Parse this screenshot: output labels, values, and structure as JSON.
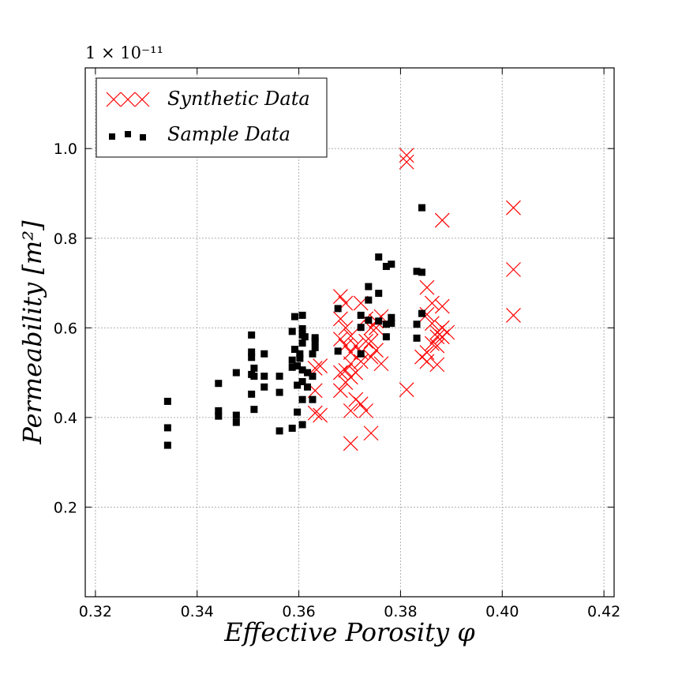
{
  "chart_data": {
    "type": "scatter",
    "xlabel": "Effective Porosity φ",
    "ylabel": "Permeability [m²]",
    "y_offset_label": "1 × 10⁻¹¹",
    "xlim": [
      0.318,
      0.422
    ],
    "ylim": [
      0.0,
      1.18
    ],
    "xticks": [
      0.32,
      0.34,
      0.36,
      0.38,
      0.4,
      0.42
    ],
    "xtick_labels": [
      "0.32",
      "0.34",
      "0.36",
      "0.38",
      "0.40",
      "0.42"
    ],
    "yticks": [
      0.2,
      0.4,
      0.6,
      0.8,
      1.0
    ],
    "ytick_labels": [
      "0.2",
      "0.4",
      "0.6",
      "0.8",
      "1.0"
    ],
    "grid": true,
    "legend_position": "top-left",
    "series": [
      {
        "name": "Synthetic Data",
        "marker": "x",
        "color": "#ff0000",
        "points": [
          [
            0.3812,
            0.985
          ],
          [
            0.3812,
            0.97
          ],
          [
            0.4022,
            0.868
          ],
          [
            0.3882,
            0.84
          ],
          [
            0.4022,
            0.73
          ],
          [
            0.4022,
            0.628
          ],
          [
            0.3812,
            0.462
          ],
          [
            0.3852,
            0.69
          ],
          [
            0.3862,
            0.655
          ],
          [
            0.3852,
            0.63
          ],
          [
            0.3882,
            0.648
          ],
          [
            0.3862,
            0.61
          ],
          [
            0.3872,
            0.58
          ],
          [
            0.3882,
            0.6
          ],
          [
            0.3872,
            0.59
          ],
          [
            0.3862,
            0.565
          ],
          [
            0.3852,
            0.545
          ],
          [
            0.3842,
            0.535
          ],
          [
            0.3882,
            0.58
          ],
          [
            0.3872,
            0.56
          ],
          [
            0.3892,
            0.59
          ],
          [
            0.3852,
            0.525
          ],
          [
            0.3872,
            0.518
          ],
          [
            0.3682,
            0.67
          ],
          [
            0.3692,
            0.655
          ],
          [
            0.3682,
            0.62
          ],
          [
            0.3692,
            0.6
          ],
          [
            0.3702,
            0.582
          ],
          [
            0.3682,
            0.575
          ],
          [
            0.3692,
            0.56
          ],
          [
            0.3702,
            0.545
          ],
          [
            0.3712,
            0.56
          ],
          [
            0.3722,
            0.655
          ],
          [
            0.3732,
            0.62
          ],
          [
            0.3742,
            0.57
          ],
          [
            0.3752,
            0.6
          ],
          [
            0.3762,
            0.625
          ],
          [
            0.3752,
            0.55
          ],
          [
            0.3762,
            0.52
          ],
          [
            0.3742,
            0.535
          ],
          [
            0.3722,
            0.525
          ],
          [
            0.3712,
            0.5
          ],
          [
            0.3702,
            0.49
          ],
          [
            0.3692,
            0.478
          ],
          [
            0.3682,
            0.5
          ],
          [
            0.3692,
            0.505
          ],
          [
            0.3702,
            0.52
          ],
          [
            0.3682,
            0.46
          ],
          [
            0.3712,
            0.44
          ],
          [
            0.3722,
            0.43
          ],
          [
            0.3732,
            0.415
          ],
          [
            0.3702,
            0.415
          ],
          [
            0.3742,
            0.365
          ],
          [
            0.3702,
            0.342
          ],
          [
            0.3632,
            0.41
          ],
          [
            0.3642,
            0.405
          ],
          [
            0.3632,
            0.46
          ],
          [
            0.3642,
            0.515
          ],
          [
            0.3632,
            0.51
          ],
          [
            0.3732,
            0.57
          ],
          [
            0.3722,
            0.545
          ],
          [
            0.3752,
            0.615
          ],
          [
            0.3742,
            0.6
          ]
        ]
      },
      {
        "name": "Sample Data",
        "marker": "s",
        "color": "#000000",
        "points": [
          [
            0.3842,
            0.868
          ],
          [
            0.3842,
            0.724
          ],
          [
            0.3832,
            0.726
          ],
          [
            0.3782,
            0.742
          ],
          [
            0.3772,
            0.737
          ],
          [
            0.3757,
            0.758
          ],
          [
            0.3757,
            0.677
          ],
          [
            0.3737,
            0.692
          ],
          [
            0.3737,
            0.662
          ],
          [
            0.3842,
            0.632
          ],
          [
            0.3832,
            0.608
          ],
          [
            0.3832,
            0.577
          ],
          [
            0.3782,
            0.623
          ],
          [
            0.3782,
            0.61
          ],
          [
            0.3772,
            0.608
          ],
          [
            0.3772,
            0.58
          ],
          [
            0.3757,
            0.615
          ],
          [
            0.3737,
            0.617
          ],
          [
            0.3722,
            0.628
          ],
          [
            0.3722,
            0.601
          ],
          [
            0.3722,
            0.542
          ],
          [
            0.3677,
            0.643
          ],
          [
            0.3677,
            0.548
          ],
          [
            0.3632,
            0.578
          ],
          [
            0.3632,
            0.571
          ],
          [
            0.3632,
            0.556
          ],
          [
            0.3627,
            0.542
          ],
          [
            0.3627,
            0.492
          ],
          [
            0.3627,
            0.44
          ],
          [
            0.3612,
            0.58
          ],
          [
            0.3607,
            0.628
          ],
          [
            0.3607,
            0.598
          ],
          [
            0.3607,
            0.584
          ],
          [
            0.3607,
            0.566
          ],
          [
            0.3602,
            0.542
          ],
          [
            0.3602,
            0.532
          ],
          [
            0.3597,
            0.515
          ],
          [
            0.3607,
            0.506
          ],
          [
            0.3617,
            0.5
          ],
          [
            0.3607,
            0.48
          ],
          [
            0.3617,
            0.468
          ],
          [
            0.3597,
            0.472
          ],
          [
            0.3607,
            0.44
          ],
          [
            0.3597,
            0.412
          ],
          [
            0.3607,
            0.384
          ],
          [
            0.3587,
            0.376
          ],
          [
            0.3592,
            0.625
          ],
          [
            0.3587,
            0.592
          ],
          [
            0.3592,
            0.552
          ],
          [
            0.3587,
            0.528
          ],
          [
            0.3587,
            0.512
          ],
          [
            0.3562,
            0.492
          ],
          [
            0.3562,
            0.456
          ],
          [
            0.3562,
            0.37
          ],
          [
            0.3532,
            0.542
          ],
          [
            0.3532,
            0.492
          ],
          [
            0.3532,
            0.468
          ],
          [
            0.3507,
            0.584
          ],
          [
            0.3507,
            0.546
          ],
          [
            0.3507,
            0.534
          ],
          [
            0.3512,
            0.51
          ],
          [
            0.3507,
            0.496
          ],
          [
            0.3512,
            0.492
          ],
          [
            0.3507,
            0.452
          ],
          [
            0.3512,
            0.418
          ],
          [
            0.3477,
            0.5
          ],
          [
            0.3477,
            0.405
          ],
          [
            0.3477,
            0.389
          ],
          [
            0.3442,
            0.476
          ],
          [
            0.3442,
            0.415
          ],
          [
            0.3442,
            0.403
          ],
          [
            0.3342,
            0.436
          ],
          [
            0.3342,
            0.377
          ],
          [
            0.3342,
            0.338
          ]
        ]
      }
    ]
  },
  "colors": {
    "synthetic": "#ff0000",
    "sample": "#000000",
    "grid": "#b0b0b0"
  }
}
